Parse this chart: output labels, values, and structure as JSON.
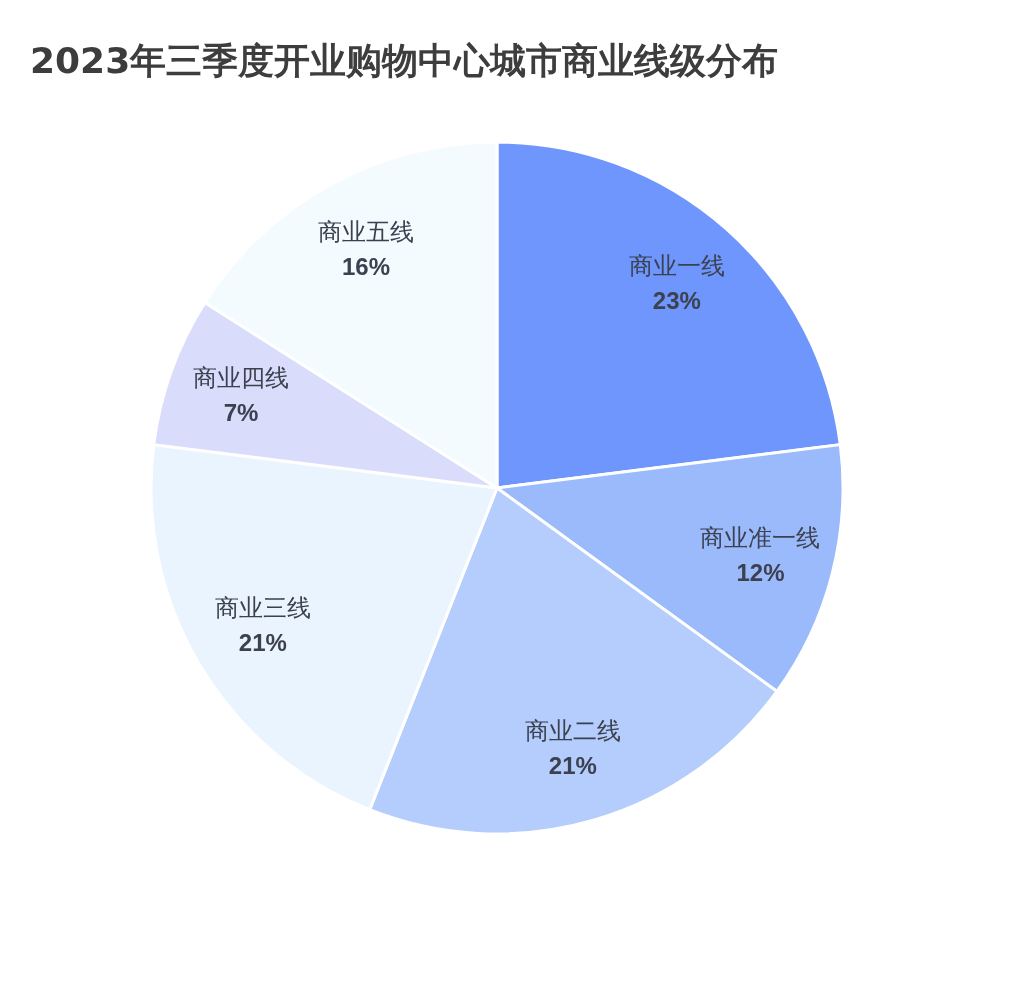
{
  "chart_data": {
    "type": "pie",
    "title": "2023年三季度开业购物中心城市商业线级分布",
    "categories": [
      "商业一线",
      "商业准一线",
      "商业二线",
      "商业三线",
      "商业四线",
      "商业五线"
    ],
    "values": [
      23,
      12,
      21,
      21,
      7,
      16
    ],
    "value_labels": [
      "23%",
      "12%",
      "21%",
      "21%",
      "7%",
      "16%"
    ],
    "colors": [
      "#6e96fc",
      "#9bbafc",
      "#b4cdfc",
      "#eaf4fe",
      "#dadcfb",
      "#f3fbfe"
    ]
  }
}
